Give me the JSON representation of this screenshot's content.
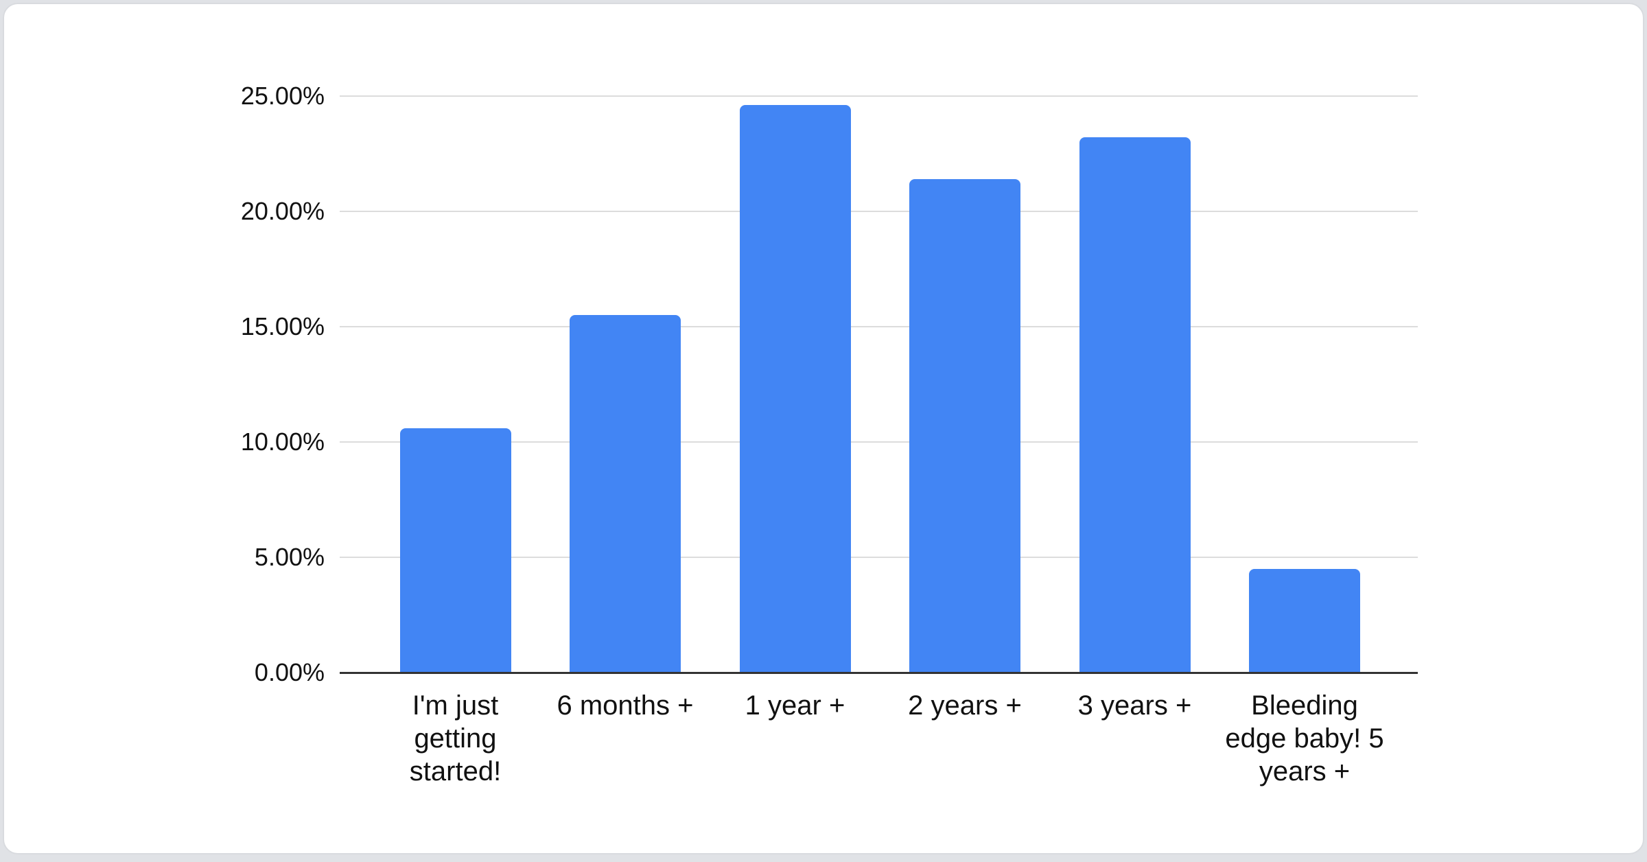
{
  "page": {
    "background_color": "#e0e2e6",
    "card_color": "#ffffff",
    "card_border_color": "#d9dbdf"
  },
  "chart_data": {
    "type": "bar",
    "title": "",
    "xlabel": "",
    "ylabel": "",
    "categories": [
      "I'm just getting started!",
      "6 months +",
      "1 year +",
      "2 years +",
      "3 years +",
      "Bleeding edge baby! 5 years +"
    ],
    "values": [
      10.6,
      15.5,
      24.6,
      21.4,
      23.2,
      4.5
    ],
    "unit": "%",
    "yticks": [
      "0.00%",
      "5.00%",
      "10.00%",
      "15.00%",
      "20.00%",
      "25.00%"
    ],
    "ylim": [
      0,
      25
    ],
    "grid": true,
    "legend": "none",
    "bar_color": "#4285f4",
    "gridline_color": "#dcdcdc",
    "axis_line_color": "#333333",
    "text_color": "#111111"
  }
}
